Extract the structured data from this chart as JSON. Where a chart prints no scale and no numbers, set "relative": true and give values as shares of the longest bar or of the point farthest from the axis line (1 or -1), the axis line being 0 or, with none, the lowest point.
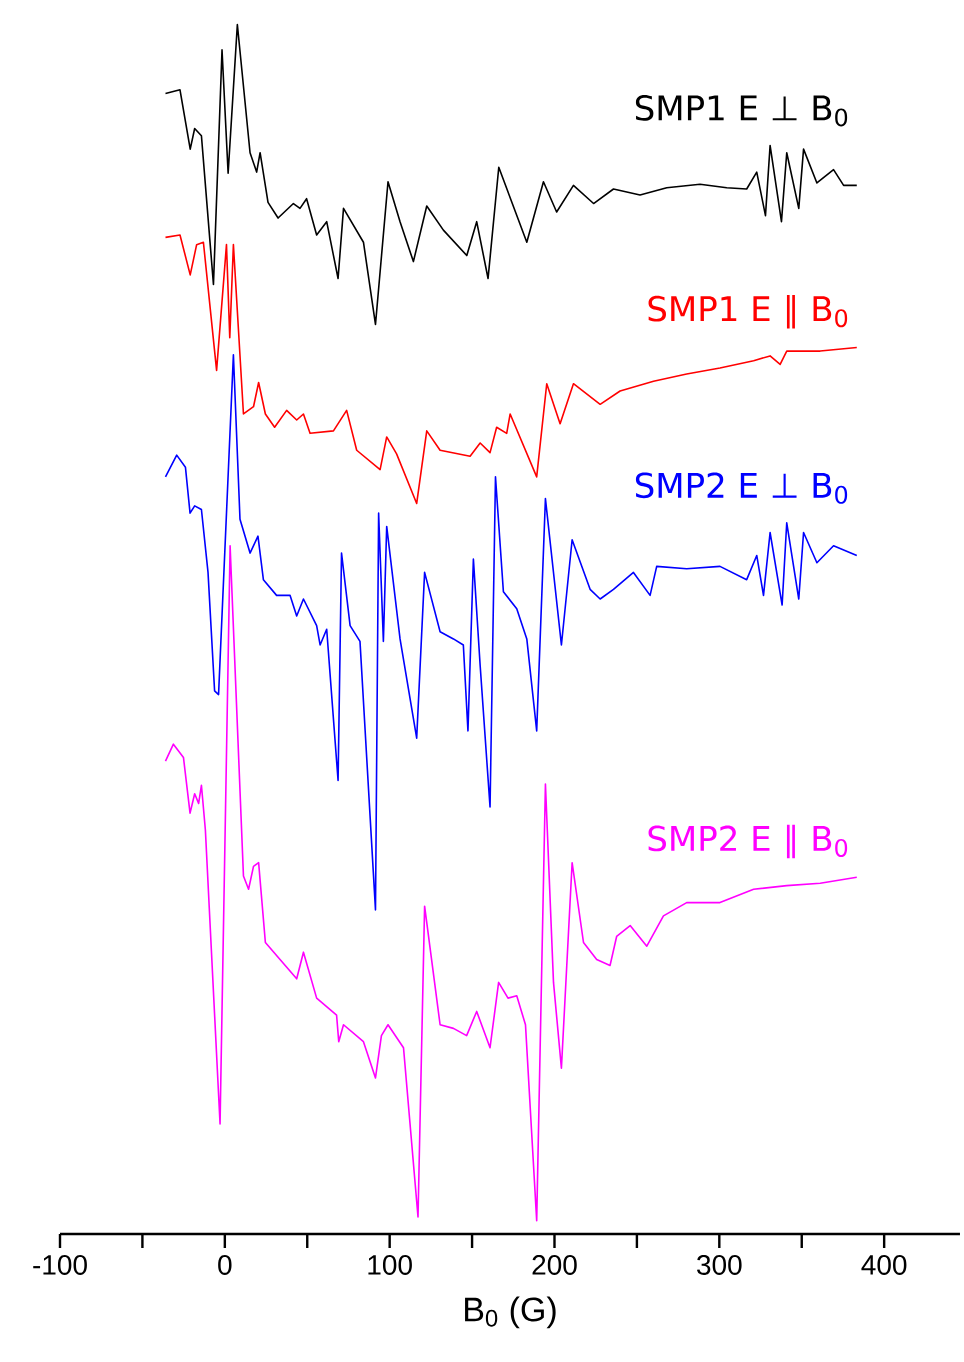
{
  "chart_data": {
    "type": "line",
    "relative": true,
    "xlabel": "B$_{0}$ (G)",
    "xlim": [
      -100,
      446
    ],
    "xticks": [
      -100,
      {
        "value": -50,
        "label": null
      },
      0,
      {
        "value": 50,
        "label": null
      },
      100,
      {
        "value": 150,
        "label": null
      },
      200,
      {
        "value": 250,
        "label": null
      },
      300,
      {
        "value": 350,
        "label": null
      },
      400
    ],
    "legend": false,
    "grid": false,
    "marker": "none",
    "line_style": "solid",
    "series": [
      {
        "name": "SMP1    E ⊥ B$_{0}$",
        "color": "#000000",
        "x": [
          -36,
          -27.2,
          -21,
          -18.3,
          -14.2,
          -6.9,
          -1.7,
          2,
          7.6,
          15.3,
          19.3,
          21.4,
          26.2,
          32.3,
          41.6,
          45.6,
          49.6,
          55.7,
          61.8,
          68.7,
          72,
          84.1,
          91.4,
          99,
          106.3,
          114.4,
          122.5,
          132.6,
          146.8,
          152.8,
          159.7,
          166.2,
          183.2,
          193.3,
          201.3,
          211.5,
          223.7,
          235.8,
          251.9,
          268.1,
          288.3,
          304.5,
          316.6,
          322.7,
          328,
          330.8,
          337.7,
          340.9,
          348.2,
          351.1,
          359.2,
          369.3,
          375.4,
          383.4
        ],
        "values": [
          0.943,
          0.946,
          0.897,
          0.914,
          0.908,
          0.785,
          0.979,
          0.877,
          1,
          0.894,
          0.878,
          0.894,
          0.853,
          0.84,
          0.852,
          0.848,
          0.856,
          0.826,
          0.837,
          0.79,
          0.848,
          0.82,
          0.752,
          0.87,
          0.837,
          0.804,
          0.85,
          0.83,
          0.809,
          0.837,
          0.79,
          0.882,
          0.82,
          0.87,
          0.845,
          0.867,
          0.852,
          0.864,
          0.859,
          0.865,
          0.868,
          0.865,
          0.864,
          0.878,
          0.842,
          0.9,
          0.837,
          0.894,
          0.848,
          0.897,
          0.869,
          0.88,
          0.867,
          0.867
        ]
      },
      {
        "name": "SMP1    E ∥ B$_{0}$",
        "color": "#ff0000",
        "x": [
          -36,
          -27.2,
          -21,
          -17.1,
          -13,
          -5,
          1,
          3,
          5.2,
          11.3,
          17.4,
          20.5,
          24.6,
          30.2,
          37.5,
          43.6,
          47.7,
          51.7,
          65.9,
          73.9,
          80,
          94.2,
          98.2,
          104.2,
          116.4,
          122.5,
          130.6,
          148.8,
          154.9,
          160.9,
          164.9,
          171,
          173.1,
          189.2,
          195.3,
          203.4,
          211.5,
          227.7,
          239.8,
          260.1,
          280.2,
          300.4,
          320.8,
          330.8,
          336.9,
          340.9,
          361.2,
          383.4
        ],
        "values": [
          0.824,
          0.826,
          0.793,
          0.818,
          0.82,
          0.714,
          0.818,
          0.741,
          0.818,
          0.678,
          0.684,
          0.704,
          0.678,
          0.667,
          0.681,
          0.673,
          0.678,
          0.662,
          0.664,
          0.681,
          0.648,
          0.632,
          0.659,
          0.645,
          0.604,
          0.664,
          0.648,
          0.643,
          0.654,
          0.646,
          0.667,
          0.662,
          0.678,
          0.626,
          0.703,
          0.67,
          0.703,
          0.686,
          0.697,
          0.705,
          0.711,
          0.716,
          0.722,
          0.726,
          0.719,
          0.73,
          0.73,
          0.733
        ]
      },
      {
        "name": "SMP2    E ⊥ B$_{0}$",
        "color": "#0000ff",
        "x": [
          -36,
          -29.2,
          -23.9,
          -21.1,
          -18.3,
          -14.2,
          -10.2,
          -6.2,
          -3.8,
          5.2,
          9.2,
          15.3,
          20.1,
          23.4,
          31.4,
          39.6,
          43.6,
          47.7,
          55.7,
          57.8,
          61.8,
          68.7,
          70.8,
          76,
          82,
          91.4,
          93.3,
          96.2,
          98.2,
          106.3,
          116.4,
          121.2,
          130.6,
          138.7,
          144.7,
          147.5,
          150.8,
          154.9,
          160.9,
          164.2,
          169,
          177.1,
          183.2,
          189.2,
          194.5,
          204.2,
          210.7,
          221.6,
          227.7,
          235.8,
          247.9,
          258,
          262,
          280.2,
          300.4,
          316.6,
          322.7,
          326.8,
          330.8,
          338.1,
          340.9,
          348.2,
          351.1,
          359.2,
          369.3,
          383.4
        ],
        "values": [
          0.626,
          0.644,
          0.634,
          0.596,
          0.602,
          0.599,
          0.547,
          0.449,
          0.446,
          0.727,
          0.591,
          0.563,
          0.577,
          0.541,
          0.528,
          0.528,
          0.511,
          0.525,
          0.503,
          0.487,
          0.5,
          0.375,
          0.563,
          0.503,
          0.49,
          0.268,
          0.596,
          0.49,
          0.585,
          0.492,
          0.41,
          0.547,
          0.498,
          0.492,
          0.487,
          0.416,
          0.558,
          0.47,
          0.353,
          0.626,
          0.531,
          0.517,
          0.492,
          0.416,
          0.608,
          0.487,
          0.574,
          0.533,
          0.525,
          0.533,
          0.547,
          0.528,
          0.552,
          0.55,
          0.552,
          0.541,
          0.561,
          0.528,
          0.58,
          0.52,
          0.588,
          0.525,
          0.58,
          0.555,
          0.569,
          0.561
        ]
      },
      {
        "name": "SMP2    E ∥ B$_{0}$",
        "color": "#ff00ff",
        "x": [
          -36,
          -31.2,
          -25.1,
          -21.1,
          -18.3,
          -15.9,
          -14.2,
          -11.8,
          -2.9,
          3.2,
          11.3,
          14.4,
          17.4,
          20.5,
          24.6,
          33.5,
          43.6,
          47.7,
          55.7,
          67.8,
          69.1,
          72,
          84.1,
          91.4,
          95,
          99,
          108.4,
          117.2,
          121.2,
          130.6,
          138.7,
          146.7,
          152.8,
          160.9,
          166.1,
          171.8,
          177.1,
          182.4,
          189.2,
          194.5,
          199.4,
          204.2,
          210.7,
          217.6,
          225.6,
          233.7,
          237.7,
          245.9,
          256,
          266.1,
          280.2,
          300.4,
          320.8,
          340.9,
          361.2,
          383.4
        ],
        "values": [
          0.391,
          0.405,
          0.394,
          0.348,
          0.364,
          0.356,
          0.371,
          0.334,
          0.091,
          0.569,
          0.296,
          0.285,
          0.304,
          0.307,
          0.241,
          0.227,
          0.211,
          0.233,
          0.195,
          0.181,
          0.159,
          0.173,
          0.159,
          0.129,
          0.164,
          0.173,
          0.154,
          0.014,
          0.271,
          0.173,
          0.17,
          0.164,
          0.184,
          0.154,
          0.208,
          0.195,
          0.197,
          0.173,
          0.011,
          0.372,
          0.208,
          0.137,
          0.307,
          0.241,
          0.227,
          0.222,
          0.246,
          0.255,
          0.238,
          0.263,
          0.274,
          0.274,
          0.285,
          0.288,
          0.29,
          0.295
        ]
      }
    ]
  }
}
